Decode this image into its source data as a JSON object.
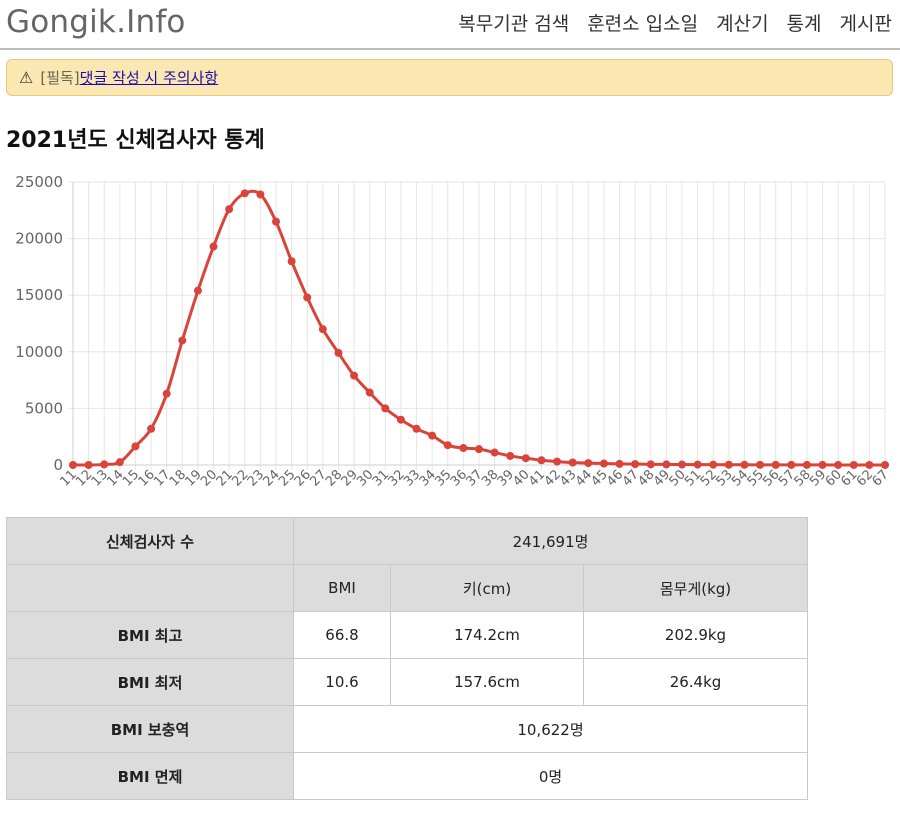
{
  "header": {
    "logo": "Gongik.Info",
    "nav": [
      "복무기관 검색",
      "훈련소 입소일",
      "계산기",
      "통계",
      "게시판"
    ]
  },
  "notice": {
    "icon": "warning-icon",
    "prefix": "[필독]",
    "link": "댓글 작성 시 주의사항"
  },
  "page_title": "2021년도 신체검사자 통계",
  "chart_data": {
    "type": "line",
    "title": "",
    "xlabel": "",
    "ylabel": "",
    "ylim": [
      0,
      25000
    ],
    "yticks": [
      0,
      5000,
      10000,
      15000,
      20000,
      25000
    ],
    "grid": true,
    "line_color": "#d9433a",
    "x": [
      11,
      12,
      13,
      14,
      15,
      16,
      17,
      18,
      19,
      20,
      21,
      22,
      23,
      24,
      25,
      26,
      27,
      28,
      29,
      30,
      31,
      32,
      33,
      34,
      35,
      36,
      37,
      38,
      39,
      40,
      41,
      42,
      43,
      44,
      45,
      46,
      47,
      48,
      49,
      50,
      51,
      52,
      53,
      54,
      55,
      56,
      57,
      58,
      59,
      60,
      61,
      62,
      67
    ],
    "values": [
      0,
      0,
      50,
      250,
      1650,
      3200,
      6300,
      11000,
      15400,
      19300,
      22600,
      24000,
      23900,
      21500,
      18000,
      14800,
      12000,
      9900,
      7900,
      6400,
      5000,
      4000,
      3200,
      2600,
      1750,
      1500,
      1400,
      1100,
      800,
      600,
      420,
      300,
      220,
      170,
      130,
      100,
      80,
      60,
      50,
      40,
      35,
      30,
      25,
      20,
      15,
      12,
      10,
      8,
      6,
      5,
      4,
      3,
      2
    ]
  },
  "table": {
    "examinee_label": "신체검사자 수",
    "examinee_value": "241,691명",
    "col_bmi": "BMI",
    "col_height": "키(cm)",
    "col_weight": "몸무게(kg)",
    "max_label": "BMI 최고",
    "max_bmi": "66.8",
    "max_height": "174.2cm",
    "max_weight": "202.9kg",
    "min_label": "BMI 최저",
    "min_bmi": "10.6",
    "min_height": "157.6cm",
    "min_weight": "26.4kg",
    "supp_label": "BMI 보충역",
    "supp_value": "10,622명",
    "exempt_label": "BMI 면제",
    "exempt_value": "0명"
  }
}
